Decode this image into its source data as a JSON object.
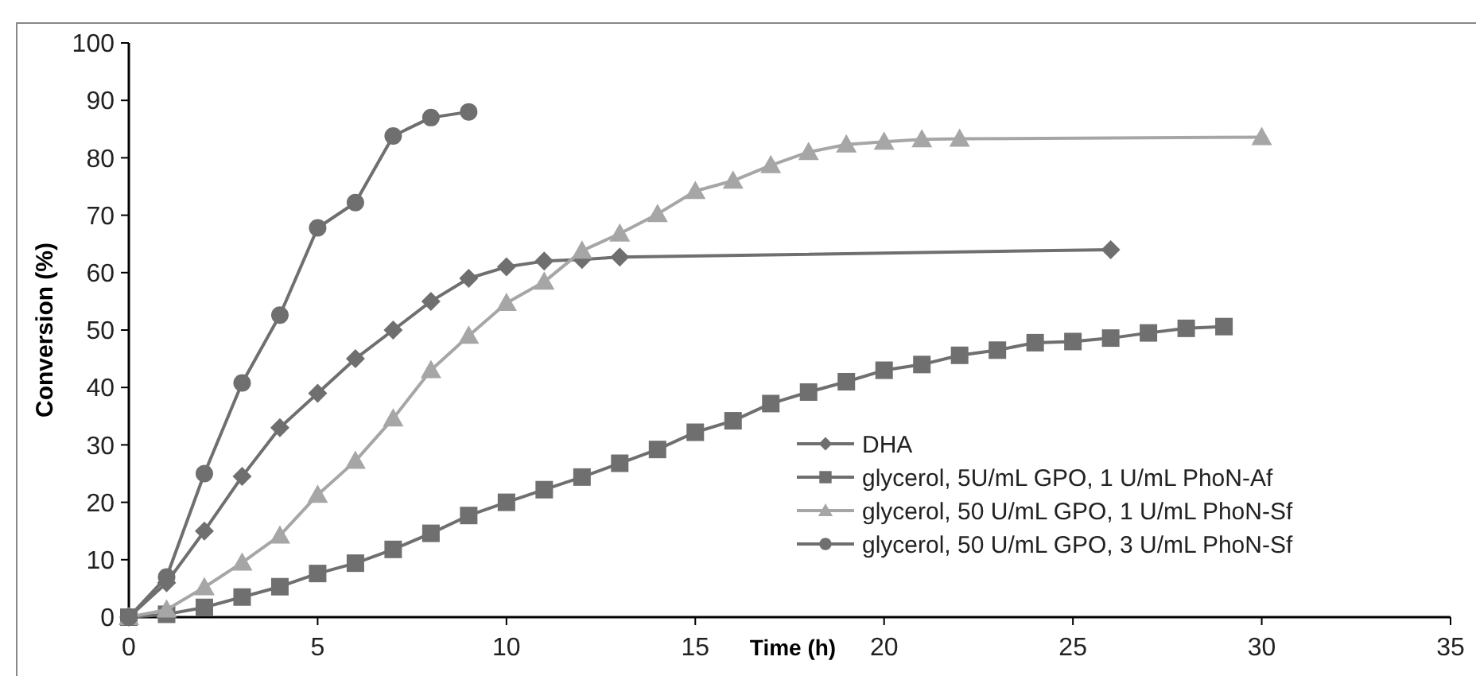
{
  "chart_data": {
    "type": "line",
    "xlabel": "Time (h)",
    "ylabel": "Conversion (%)",
    "xlim": [
      0,
      35
    ],
    "xticks": [
      0,
      5,
      10,
      15,
      20,
      25,
      30,
      35
    ],
    "ylim": [
      0,
      100
    ],
    "yticks": [
      0,
      10,
      20,
      30,
      40,
      50,
      60,
      70,
      80,
      90,
      100
    ],
    "grid": false,
    "legend": "bottom right",
    "series": [
      {
        "name": "DHA",
        "color": "#6f6f6f",
        "marker": "diamond",
        "x": [
          0,
          1,
          2,
          3,
          4,
          5,
          6,
          7,
          8,
          9,
          10,
          11,
          12,
          13,
          26
        ],
        "values": [
          0,
          6,
          15,
          24.5,
          33,
          39,
          45,
          50,
          55,
          59,
          61,
          62,
          62.3,
          62.7,
          64
        ]
      },
      {
        "name": "glycerol, 5U/mL GPO, 1 U/mL PhoN-Af",
        "color": "#6f6f6f",
        "marker": "square",
        "x": [
          0,
          1,
          2,
          3,
          4,
          5,
          6,
          7,
          8,
          9,
          10,
          11,
          12,
          13,
          14,
          15,
          16,
          17,
          18,
          19,
          20,
          21,
          22,
          23,
          24,
          25,
          26,
          27,
          28,
          29
        ],
        "values": [
          0,
          0.5,
          1.7,
          3.5,
          5.3,
          7.6,
          9.4,
          11.8,
          14.6,
          17.7,
          20,
          22.2,
          24.4,
          26.8,
          29.2,
          32.2,
          34.2,
          37.2,
          39.2,
          41,
          43,
          44,
          45.6,
          46.5,
          47.8,
          48,
          48.6,
          49.5,
          50.3,
          50.6
        ]
      },
      {
        "name": "glycerol, 50 U/mL GPO, 1 U/mL PhoN-Sf",
        "color": "#a6a6a6",
        "marker": "triangle",
        "x": [
          0,
          1,
          2,
          3,
          4,
          5,
          6,
          7,
          8,
          9,
          10,
          11,
          12,
          13,
          14,
          15,
          16,
          17,
          18,
          19,
          20,
          21,
          22,
          30
        ],
        "values": [
          0,
          1.3,
          5.2,
          9.5,
          14.2,
          21.3,
          27.2,
          34.6,
          43,
          49,
          54.7,
          58.4,
          63.8,
          66.8,
          70.2,
          74.2,
          76,
          78.7,
          81,
          82.3,
          82.8,
          83.2,
          83.3,
          83.6
        ]
      },
      {
        "name": "glycerol, 50 U/mL GPO, 3 U/mL PhoN-Sf",
        "color": "#6f6f6f",
        "marker": "circle",
        "x": [
          0,
          1,
          2,
          3,
          4,
          5,
          6,
          7,
          8,
          9
        ],
        "values": [
          0,
          7,
          25,
          40.8,
          52.6,
          67.8,
          72.2,
          83.8,
          87,
          88
        ]
      }
    ]
  }
}
